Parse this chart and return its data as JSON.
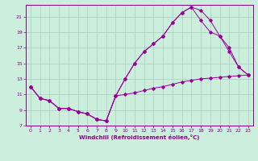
{
  "bg_color": "#cceedd",
  "grid_color": "#aaccbb",
  "line_color": "#990099",
  "marker_color": "#990099",
  "xlabel": "Windchill (Refroidissement éolien,°C)",
  "xlabel_color": "#880088",
  "tick_color": "#880088",
  "xlim": [
    -0.5,
    23.5
  ],
  "ylim": [
    7,
    22.5
  ],
  "yticks": [
    7,
    9,
    11,
    13,
    15,
    17,
    19,
    21
  ],
  "xticks": [
    0,
    1,
    2,
    3,
    4,
    5,
    6,
    7,
    8,
    9,
    10,
    11,
    12,
    13,
    14,
    15,
    16,
    17,
    18,
    19,
    20,
    21,
    22,
    23
  ],
  "line1_x": [
    0,
    1,
    2,
    3,
    4,
    5,
    6,
    7,
    8,
    9,
    10,
    11,
    12,
    13,
    14,
    15,
    16,
    17,
    18,
    19,
    20,
    21,
    22,
    23
  ],
  "line1_y": [
    12.0,
    10.5,
    10.2,
    9.2,
    9.2,
    8.8,
    8.5,
    7.8,
    7.6,
    10.8,
    11.0,
    11.2,
    11.5,
    11.8,
    12.0,
    12.3,
    12.6,
    12.8,
    13.0,
    13.1,
    13.2,
    13.3,
    13.4,
    13.5
  ],
  "line2_x": [
    0,
    1,
    2,
    3,
    4,
    5,
    6,
    7,
    8,
    9,
    10,
    11,
    12,
    13,
    14,
    15,
    16,
    17,
    18,
    19,
    20,
    21,
    22,
    23
  ],
  "line2_y": [
    12.0,
    10.5,
    10.2,
    9.2,
    9.2,
    8.8,
    8.5,
    7.8,
    7.6,
    10.8,
    13.0,
    15.0,
    16.5,
    17.5,
    18.5,
    20.2,
    21.5,
    22.2,
    21.8,
    20.5,
    18.5,
    16.5,
    14.5,
    13.5
  ],
  "line3_x": [
    0,
    1,
    2,
    3,
    4,
    5,
    6,
    7,
    8,
    9,
    10,
    11,
    12,
    13,
    14,
    15,
    16,
    17,
    18,
    19,
    20,
    21,
    22,
    23
  ],
  "line3_y": [
    12.0,
    10.5,
    10.2,
    9.2,
    9.2,
    8.8,
    8.5,
    7.8,
    7.6,
    10.8,
    13.0,
    15.0,
    16.5,
    17.5,
    18.5,
    20.2,
    21.5,
    22.2,
    20.5,
    19.0,
    18.5,
    17.0,
    14.5,
    13.5
  ]
}
